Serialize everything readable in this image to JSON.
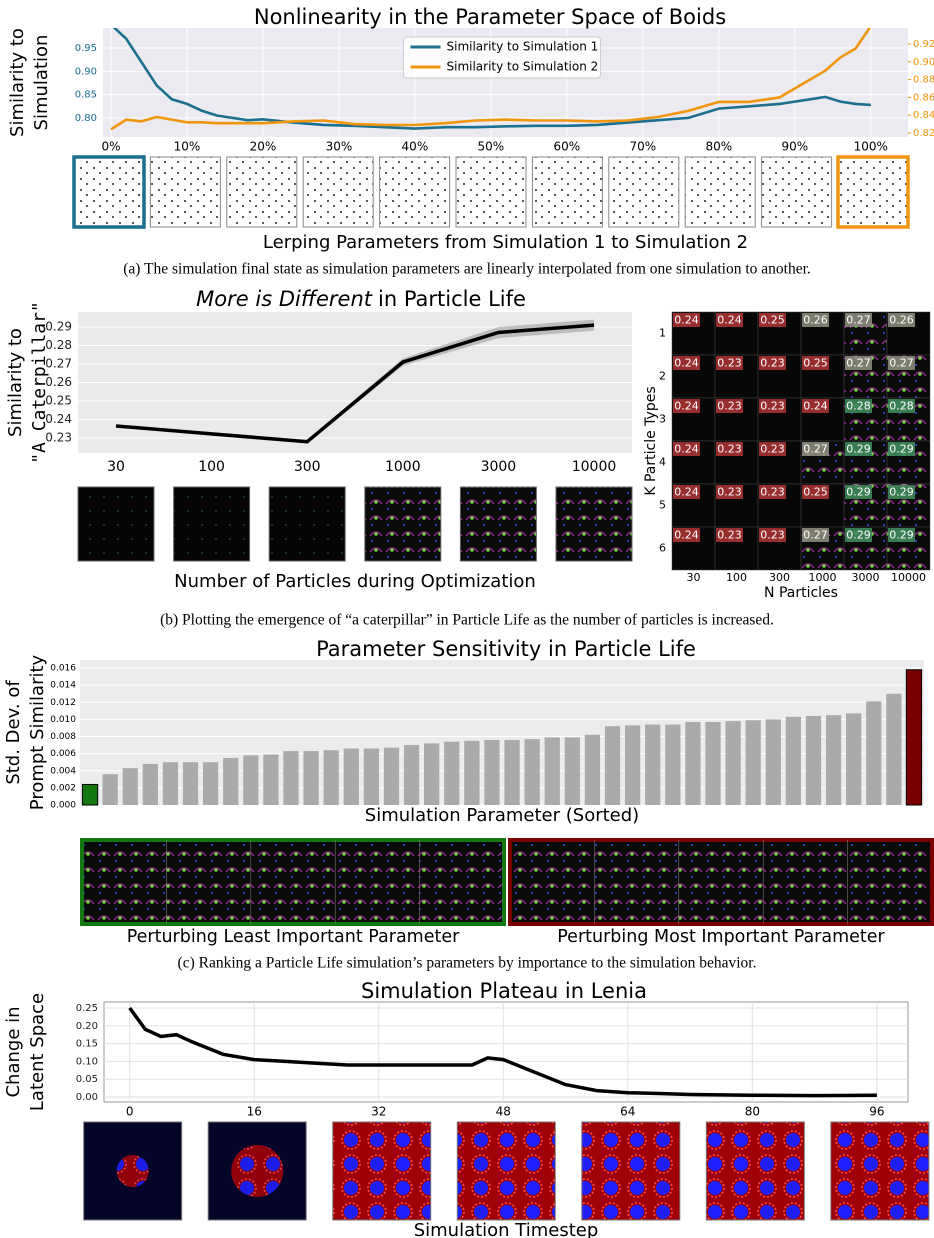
{
  "chart_data": [
    {
      "type": "line",
      "title": "Nonlinearity in the Parameter Space of Boids",
      "ylabel": [
        "Similarity to",
        "Simulation"
      ],
      "xlabel": "Lerping Parameters from Simulation 1 to Simulation 2",
      "caption": "(a) The simulation final state as simulation parameters are linearly interpolated from one simulation to another.",
      "x": [
        0,
        2,
        4,
        6,
        8,
        10,
        12,
        14,
        16,
        18,
        20,
        24,
        28,
        32,
        36,
        40,
        44,
        48,
        52,
        56,
        60,
        64,
        68,
        72,
        76,
        80,
        84,
        88,
        90,
        92,
        94,
        96,
        98,
        100
      ],
      "xlim": [
        -1.05,
        104.9
      ],
      "xticks": [
        {
          "value": 0,
          "label": "0%"
        },
        {
          "value": 10,
          "label": "10%"
        },
        {
          "value": 20,
          "label": "20%"
        },
        {
          "value": 30,
          "label": "30%"
        },
        {
          "value": 40,
          "label": "40%"
        },
        {
          "value": 50,
          "label": "50%"
        },
        {
          "value": 60,
          "label": "60%"
        },
        {
          "value": 70,
          "label": "70%"
        },
        {
          "value": 80,
          "label": "80%"
        },
        {
          "value": 90,
          "label": "90%"
        },
        {
          "value": 100,
          "label": "100%"
        }
      ],
      "ylim": [
        0.759,
        0.993
      ],
      "yticks": [
        {
          "value": 0.8,
          "label": "0.80"
        },
        0.85,
        {
          "value": 0.9,
          "label": "0.90"
        },
        0.95
      ],
      "y2lim": [
        0.8155,
        0.938
      ],
      "y2ticks": [
        0.82,
        0.84,
        0.86,
        0.88,
        {
          "value": 0.9,
          "label": "0.90"
        },
        0.92
      ],
      "grid": true,
      "legend": "upper center",
      "series": [
        {
          "name": "Similarity to Simulation 1",
          "color": "#1b6f8f",
          "values": [
            1.0,
            0.97,
            0.92,
            0.87,
            0.84,
            0.83,
            0.815,
            0.805,
            0.8,
            0.795,
            0.797,
            0.79,
            0.785,
            0.783,
            0.78,
            0.777,
            0.78,
            0.78,
            0.782,
            0.783,
            0.783,
            0.785,
            0.79,
            0.795,
            0.8,
            0.82,
            0.825,
            0.83,
            0.835,
            0.84,
            0.845,
            0.835,
            0.83,
            0.828
          ]
        },
        {
          "name": "Similarity to Simulation 2",
          "color": "#f0950e",
          "axis": "y2",
          "values": [
            0.824,
            0.835,
            0.833,
            0.838,
            0.835,
            0.832,
            0.832,
            0.831,
            0.831,
            0.831,
            0.831,
            0.833,
            0.834,
            0.83,
            0.829,
            0.829,
            0.831,
            0.834,
            0.835,
            0.834,
            0.834,
            0.833,
            0.834,
            0.838,
            0.845,
            0.855,
            0.855,
            0.86,
            0.87,
            0.88,
            0.89,
            0.905,
            0.915,
            0.94
          ]
        }
      ]
    },
    {
      "type": "line",
      "title_italic": "More is Different",
      "title": "in Particle Life",
      "ylabel": [
        "Similarity to",
        "\"A Caterpillar\""
      ],
      "xlabel": "Number of Particles during Optimization",
      "caption": "(b) Plotting the emergence of “a caterpillar” in Particle Life as the number of particles is increased.",
      "categories": [
        "30",
        "100",
        "300",
        "1000",
        "3000",
        "10000"
      ],
      "values": [
        0.2365,
        0.2322,
        0.228,
        0.271,
        0.287,
        0.291
      ],
      "errors": [
        0.0005,
        0.001,
        0.001,
        0.002,
        0.003,
        0.003
      ],
      "color": "#000000",
      "grid": true,
      "ylim": [
        0.2219,
        0.2981
      ],
      "yticks": [
        0.23,
        0.24,
        0.25,
        0.26,
        0.27,
        0.28,
        0.29
      ]
    },
    {
      "type": "heatmap",
      "xlabel": "N Particles",
      "ylabel": "K Particle Types",
      "categories": [
        "30",
        "100",
        "300",
        "1000",
        "3000",
        "10000"
      ],
      "rows": [
        "1",
        "2",
        "3",
        "4",
        "5",
        "6"
      ],
      "values": [
        [
          0.24,
          0.24,
          0.25,
          0.26,
          0.27,
          0.26
        ],
        [
          0.24,
          0.23,
          0.23,
          0.25,
          0.27,
          0.27
        ],
        [
          0.24,
          0.23,
          0.23,
          0.24,
          0.28,
          0.28
        ],
        [
          0.24,
          0.23,
          0.23,
          0.27,
          0.29,
          0.29
        ],
        [
          0.24,
          0.23,
          0.23,
          0.25,
          0.29,
          0.29
        ],
        [
          0.24,
          0.23,
          0.23,
          0.27,
          0.29,
          0.29
        ]
      ]
    },
    {
      "type": "bar",
      "title": "Parameter Sensitivity in Particle Life",
      "ylabel": [
        "Std. Dev. of",
        "Prompt Similarity"
      ],
      "xlabel": "Simulation Parameter (Sorted)",
      "image_labels": [
        "Perturbing Least Important Parameter",
        "Perturbing Most Important Parameter"
      ],
      "caption": "(c) Ranking a Particle Life simulation’s parameters by importance to the simulation behavior.",
      "values": [
        0.0024,
        0.0036,
        0.0043,
        0.0048,
        0.005,
        0.005,
        0.005,
        0.0055,
        0.0058,
        0.0059,
        0.0063,
        0.0063,
        0.0064,
        0.0066,
        0.0066,
        0.0067,
        0.007,
        0.0072,
        0.0074,
        0.0075,
        0.0076,
        0.0076,
        0.0077,
        0.0079,
        0.0079,
        0.0082,
        0.0092,
        0.0093,
        0.0094,
        0.0094,
        0.0097,
        0.0097,
        0.0098,
        0.0099,
        0.01,
        0.0103,
        0.0104,
        0.0105,
        0.0107,
        0.0121,
        0.013,
        0.0158
      ],
      "color": "#aaaaaa",
      "first_color": "#13780f",
      "last_color": "#780000",
      "grid": true,
      "ylim": [
        0,
        0.01694
      ],
      "yticks": [
        {
          "value": 0,
          "label": "0.000"
        },
        {
          "value": 0.002,
          "label": "0.002"
        },
        {
          "value": 0.004,
          "label": "0.004"
        },
        {
          "value": 0.006,
          "label": "0.006"
        },
        {
          "value": 0.008,
          "label": "0.008"
        },
        {
          "value": 0.01,
          "label": "0.010"
        },
        {
          "value": 0.012,
          "label": "0.012"
        },
        {
          "value": 0.014,
          "label": "0.014"
        },
        {
          "value": 0.016,
          "label": "0.016"
        }
      ]
    },
    {
      "type": "line",
      "title": "Simulation Plateau in Lenia",
      "ylabel": [
        "Change in",
        "Latent Space"
      ],
      "xlabel": "Simulation Timestep",
      "x": [
        0,
        2,
        4,
        6,
        8,
        12,
        16,
        20,
        24,
        28,
        32,
        36,
        40,
        44,
        46,
        48,
        52,
        56,
        60,
        64,
        68,
        72,
        80,
        88,
        96
      ],
      "values": [
        0.25,
        0.19,
        0.17,
        0.175,
        0.155,
        0.12,
        0.105,
        0.1,
        0.095,
        0.09,
        0.09,
        0.09,
        0.09,
        0.09,
        0.11,
        0.105,
        0.07,
        0.035,
        0.018,
        0.012,
        0.01,
        0.007,
        0.005,
        0.004,
        0.005
      ],
      "color": "#000000",
      "grid": true,
      "xlim": [
        -3.3,
        100
      ],
      "xticks": [
        0,
        16,
        32,
        48,
        64,
        80,
        96
      ],
      "ylim": [
        -0.014,
        0.2669
      ],
      "yticks": [
        {
          "value": 0,
          "label": "0.00"
        },
        0.05,
        {
          "value": 0.1,
          "label": "0.10"
        },
        0.15,
        {
          "value": 0.2,
          "label": "0.20"
        },
        0.25
      ]
    }
  ]
}
